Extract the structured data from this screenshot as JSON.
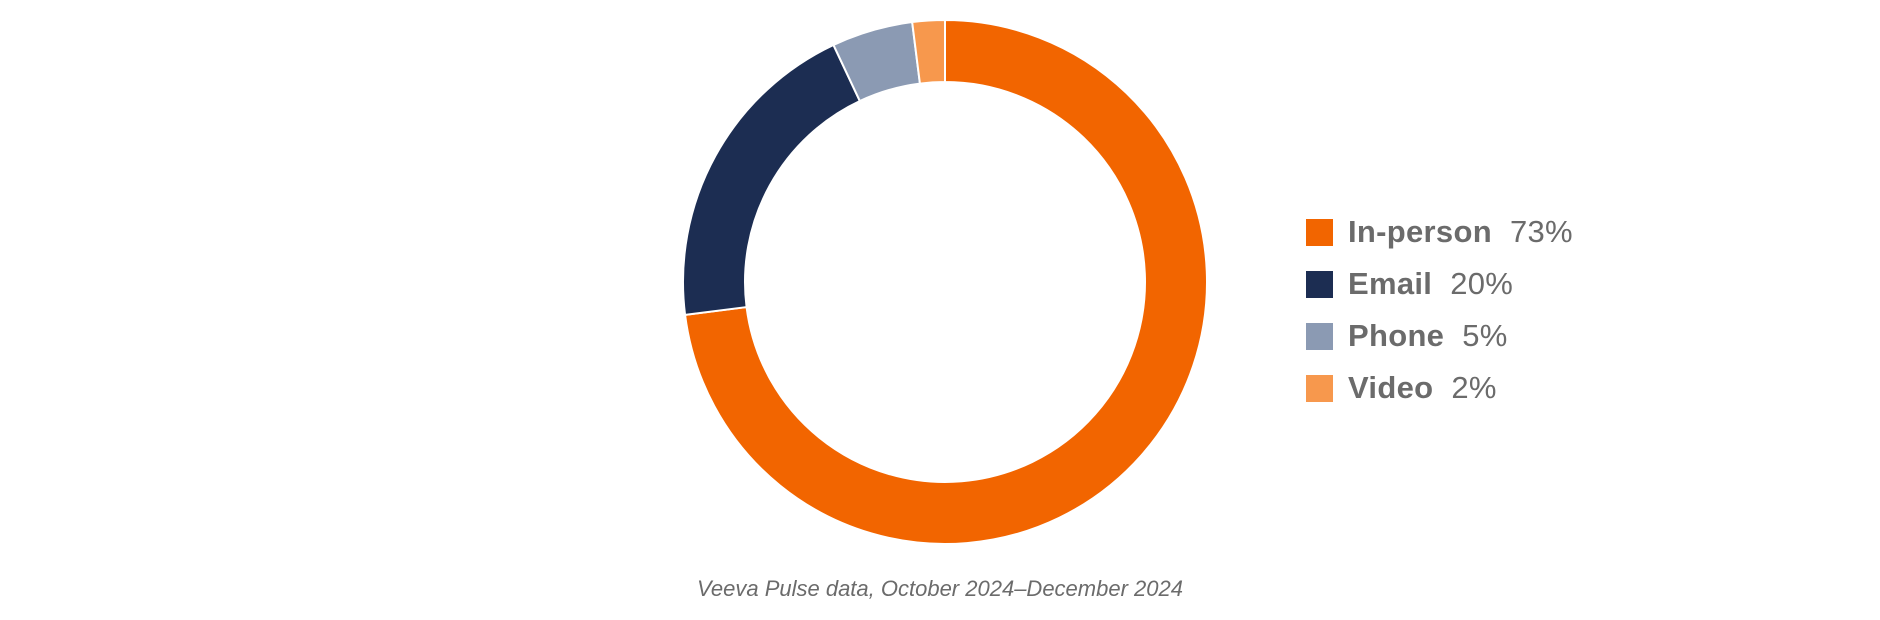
{
  "chart_data": {
    "type": "pie",
    "donut": true,
    "categories": [
      "In-person",
      "Email",
      "Phone",
      "Video"
    ],
    "values": [
      73,
      20,
      5,
      2
    ],
    "value_labels": [
      "73%",
      "20%",
      "5%",
      "2%"
    ],
    "colors": [
      "#F26500",
      "#1C2D52",
      "#8B9AB3",
      "#F7984D"
    ],
    "title": "",
    "source_note": "Veeva Pulse data, October 2024–December 2024",
    "legend_position": "right",
    "start_angle_deg": 0,
    "direction": "clockwise"
  }
}
